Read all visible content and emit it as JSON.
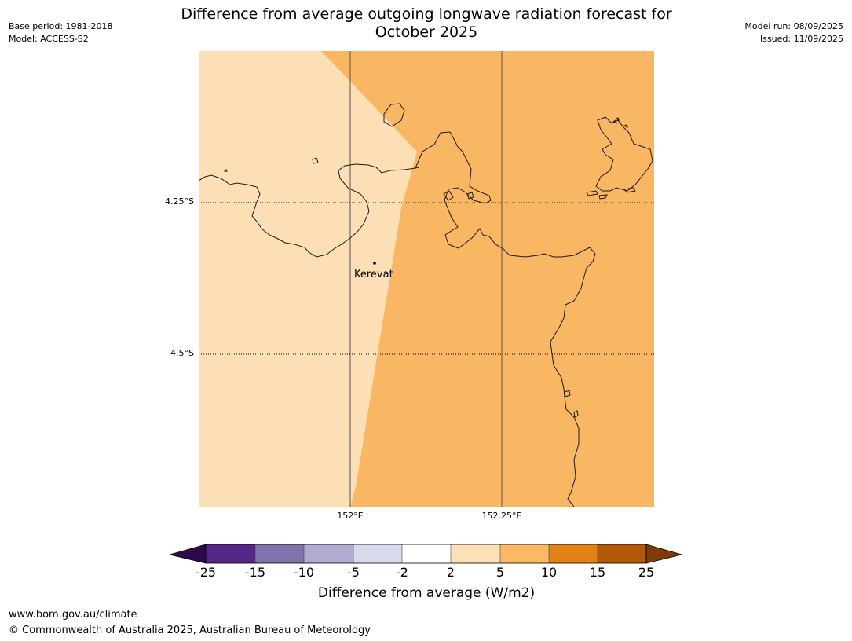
{
  "header": {
    "title_line1": "Difference from average outgoing longwave radiation forecast for",
    "title_line2": "October 2025",
    "base_period": "Base period: 1981-2018",
    "model": "Model: ACCESS-S2",
    "model_run": "Model run: 08/09/2025",
    "issued": "Issued: 11/09/2025"
  },
  "map": {
    "lat_labels": [
      "4.25°S",
      "4.5°S"
    ],
    "lon_labels": [
      "152°E",
      "152.25°E"
    ],
    "place_label": "Kerevat",
    "colors": {
      "band_2_5": "#fcdfb5",
      "band_5_10": "#f9b763",
      "coastline": "#1a1a1a",
      "grid": "#555555"
    }
  },
  "legend": {
    "label": "Difference from average (W/m2)",
    "ticks": [
      "-25",
      "-15",
      "-10",
      "-5",
      "-2",
      "2",
      "5",
      "10",
      "15",
      "25"
    ],
    "under_color": "#2d0a4e",
    "over_color": "#7f3b08",
    "colors": [
      "#542788",
      "#8073ac",
      "#b2abd2",
      "#d8daeb",
      "#ffffff",
      "#fee0b6",
      "#fdb863",
      "#e08214",
      "#b35806"
    ]
  },
  "footer": {
    "url": "www.bom.gov.au/climate",
    "copyright": "© Commonwealth of Australia 2025, Australian Bureau of Meteorology"
  }
}
